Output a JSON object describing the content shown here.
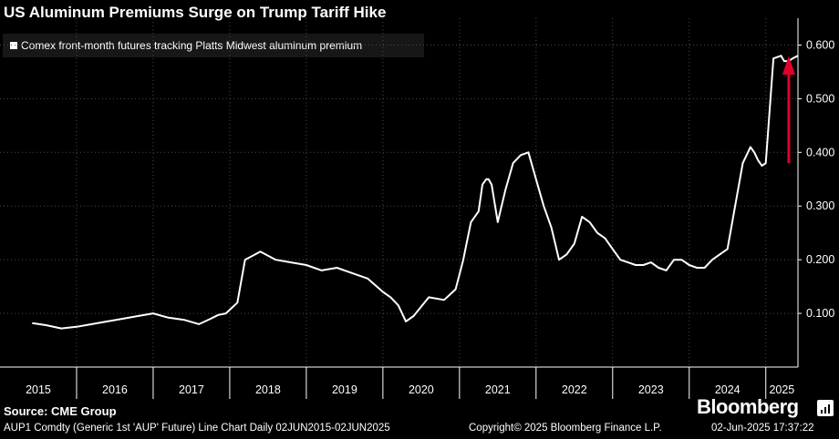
{
  "header": {
    "title": "US Aluminum Premiums Surge on Trump Tariff Hike"
  },
  "footer": {
    "source": "Source: CME Group",
    "brand": "Bloomberg",
    "ticker": "AUP1 Comdty (Generic 1st 'AUP' Future) Line Chart  Daily 02JUN2015-02JUN2025",
    "copyright": "Copyright© 2025 Bloomberg Finance L.P.",
    "timestamp": "02-Jun-2025  17:37:22"
  },
  "colors": {
    "background": "#000000",
    "line": "#ffffff",
    "arrow": "#e4002b",
    "grid": "#4a4a4a",
    "legend_bg": "#171717"
  },
  "chart_data": {
    "type": "line",
    "title": "US Aluminum Premiums Surge on Trump Tariff Hike",
    "xlabel": "",
    "ylabel": "",
    "xlim": [
      2015.0,
      2025.42
    ],
    "ylim": [
      0.0,
      0.65
    ],
    "y_ticks": [
      0.1,
      0.2,
      0.3,
      0.4,
      0.5,
      0.6
    ],
    "y_tick_labels": [
      "0.100",
      "0.200",
      "0.300",
      "0.400",
      "0.500",
      "0.600"
    ],
    "x_ticks": [
      "2015",
      "2016",
      "2017",
      "2018",
      "2019",
      "2020",
      "2021",
      "2022",
      "2023",
      "2024",
      "2025"
    ],
    "grid": true,
    "legend_position": "top-left",
    "annotation": "upward-red-arrow",
    "series": [
      {
        "name": "Comex front-month futures tracking Platts Midwest aluminum premium",
        "x": [
          2015.42,
          2015.6,
          2015.8,
          2016.0,
          2016.2,
          2016.4,
          2016.6,
          2016.8,
          2017.0,
          2017.2,
          2017.4,
          2017.6,
          2017.75,
          2017.85,
          2017.95,
          2018.1,
          2018.2,
          2018.4,
          2018.6,
          2018.8,
          2019.0,
          2019.2,
          2019.4,
          2019.6,
          2019.8,
          2020.0,
          2020.1,
          2020.2,
          2020.3,
          2020.4,
          2020.6,
          2020.8,
          2020.95,
          2021.05,
          2021.15,
          2021.25,
          2021.3,
          2021.35,
          2021.38,
          2021.42,
          2021.5,
          2021.6,
          2021.7,
          2021.8,
          2021.9,
          2022.0,
          2022.1,
          2022.2,
          2022.3,
          2022.4,
          2022.5,
          2022.6,
          2022.7,
          2022.8,
          2022.9,
          2023.0,
          2023.1,
          2023.2,
          2023.3,
          2023.4,
          2023.5,
          2023.6,
          2023.7,
          2023.8,
          2023.9,
          2024.0,
          2024.1,
          2024.2,
          2024.3,
          2024.4,
          2024.5,
          2024.6,
          2024.7,
          2024.8,
          2024.85,
          2024.9,
          2024.95,
          2025.0,
          2025.1,
          2025.2,
          2025.22,
          2025.24,
          2025.3,
          2025.35,
          2025.42
        ],
        "y": [
          0.082,
          0.078,
          0.072,
          0.075,
          0.08,
          0.085,
          0.09,
          0.095,
          0.1,
          0.092,
          0.088,
          0.08,
          0.09,
          0.097,
          0.1,
          0.12,
          0.2,
          0.215,
          0.2,
          0.195,
          0.19,
          0.18,
          0.185,
          0.175,
          0.165,
          0.14,
          0.13,
          0.115,
          0.085,
          0.095,
          0.13,
          0.125,
          0.145,
          0.2,
          0.27,
          0.29,
          0.34,
          0.35,
          0.35,
          0.34,
          0.27,
          0.33,
          0.38,
          0.395,
          0.4,
          0.35,
          0.3,
          0.26,
          0.2,
          0.21,
          0.23,
          0.28,
          0.27,
          0.25,
          0.24,
          0.22,
          0.2,
          0.195,
          0.19,
          0.19,
          0.195,
          0.185,
          0.18,
          0.2,
          0.2,
          0.19,
          0.185,
          0.185,
          0.2,
          0.21,
          0.22,
          0.3,
          0.38,
          0.41,
          0.4,
          0.385,
          0.375,
          0.38,
          0.575,
          0.58,
          0.575,
          0.57,
          0.57,
          0.575,
          0.58
        ]
      }
    ]
  }
}
